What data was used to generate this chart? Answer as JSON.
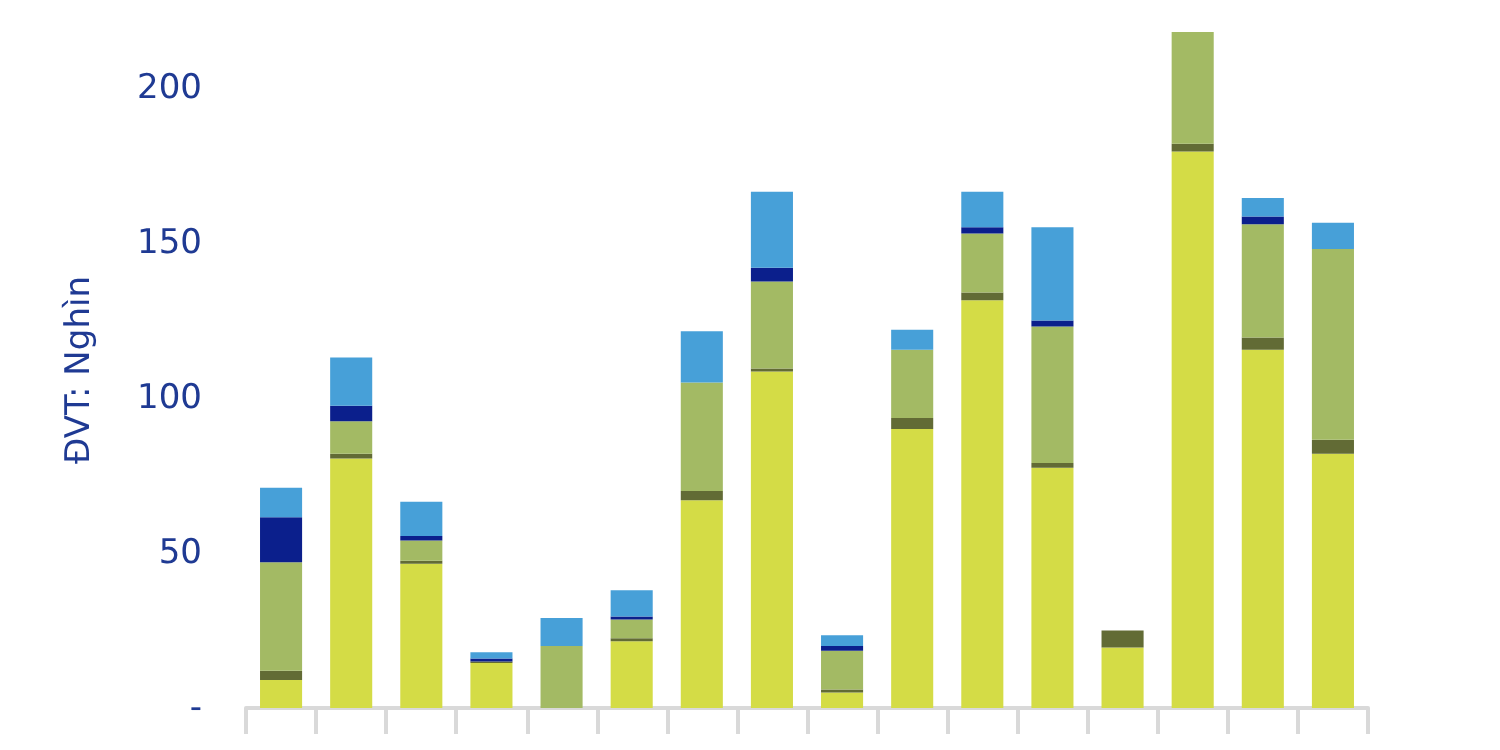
{
  "chart_data": {
    "type": "bar",
    "stacked": true,
    "ylabel": "ĐVT: Nghìn",
    "categories": [
      null,
      null,
      null,
      null,
      null,
      null,
      null,
      null,
      null,
      null,
      null,
      null,
      null,
      null,
      null,
      null
    ],
    "series": [
      {
        "color": "#d4dc46",
        "values": [
          9,
          80.5,
          46.5,
          14.5,
          0,
          21.5,
          67,
          108.5,
          5,
          90,
          131.5,
          77.5,
          19.5,
          179.5,
          115.5,
          82
        ]
      },
      {
        "color": "#626b35",
        "values": [
          3,
          1.5,
          1,
          0.5,
          0,
          1,
          3,
          1,
          1,
          3.5,
          2.5,
          1.5,
          5.5,
          2.5,
          4,
          4.5
        ]
      },
      {
        "color": "#a3ba64",
        "values": [
          35,
          10.5,
          6.5,
          0,
          20,
          6,
          35,
          28,
          12.5,
          22,
          19,
          44,
          0,
          36,
          36.5,
          61.5
        ]
      },
      {
        "color": "#0b1f8c",
        "values": [
          14.5,
          5,
          1.5,
          1,
          0,
          1,
          0,
          4.5,
          1.5,
          0,
          2,
          2,
          0,
          0,
          2.5,
          0
        ]
      },
      {
        "color": "#47a0d8",
        "values": [
          9.5,
          15.5,
          11,
          2,
          9,
          8.5,
          16.5,
          24.5,
          3.5,
          6.5,
          11.5,
          30,
          0,
          0,
          6,
          8.5
        ]
      }
    ],
    "ylim": [
      0,
      218
    ],
    "yticks": [
      {
        "value": 0,
        "label": "-"
      },
      50,
      100,
      150,
      200
    ],
    "grid": false
  }
}
